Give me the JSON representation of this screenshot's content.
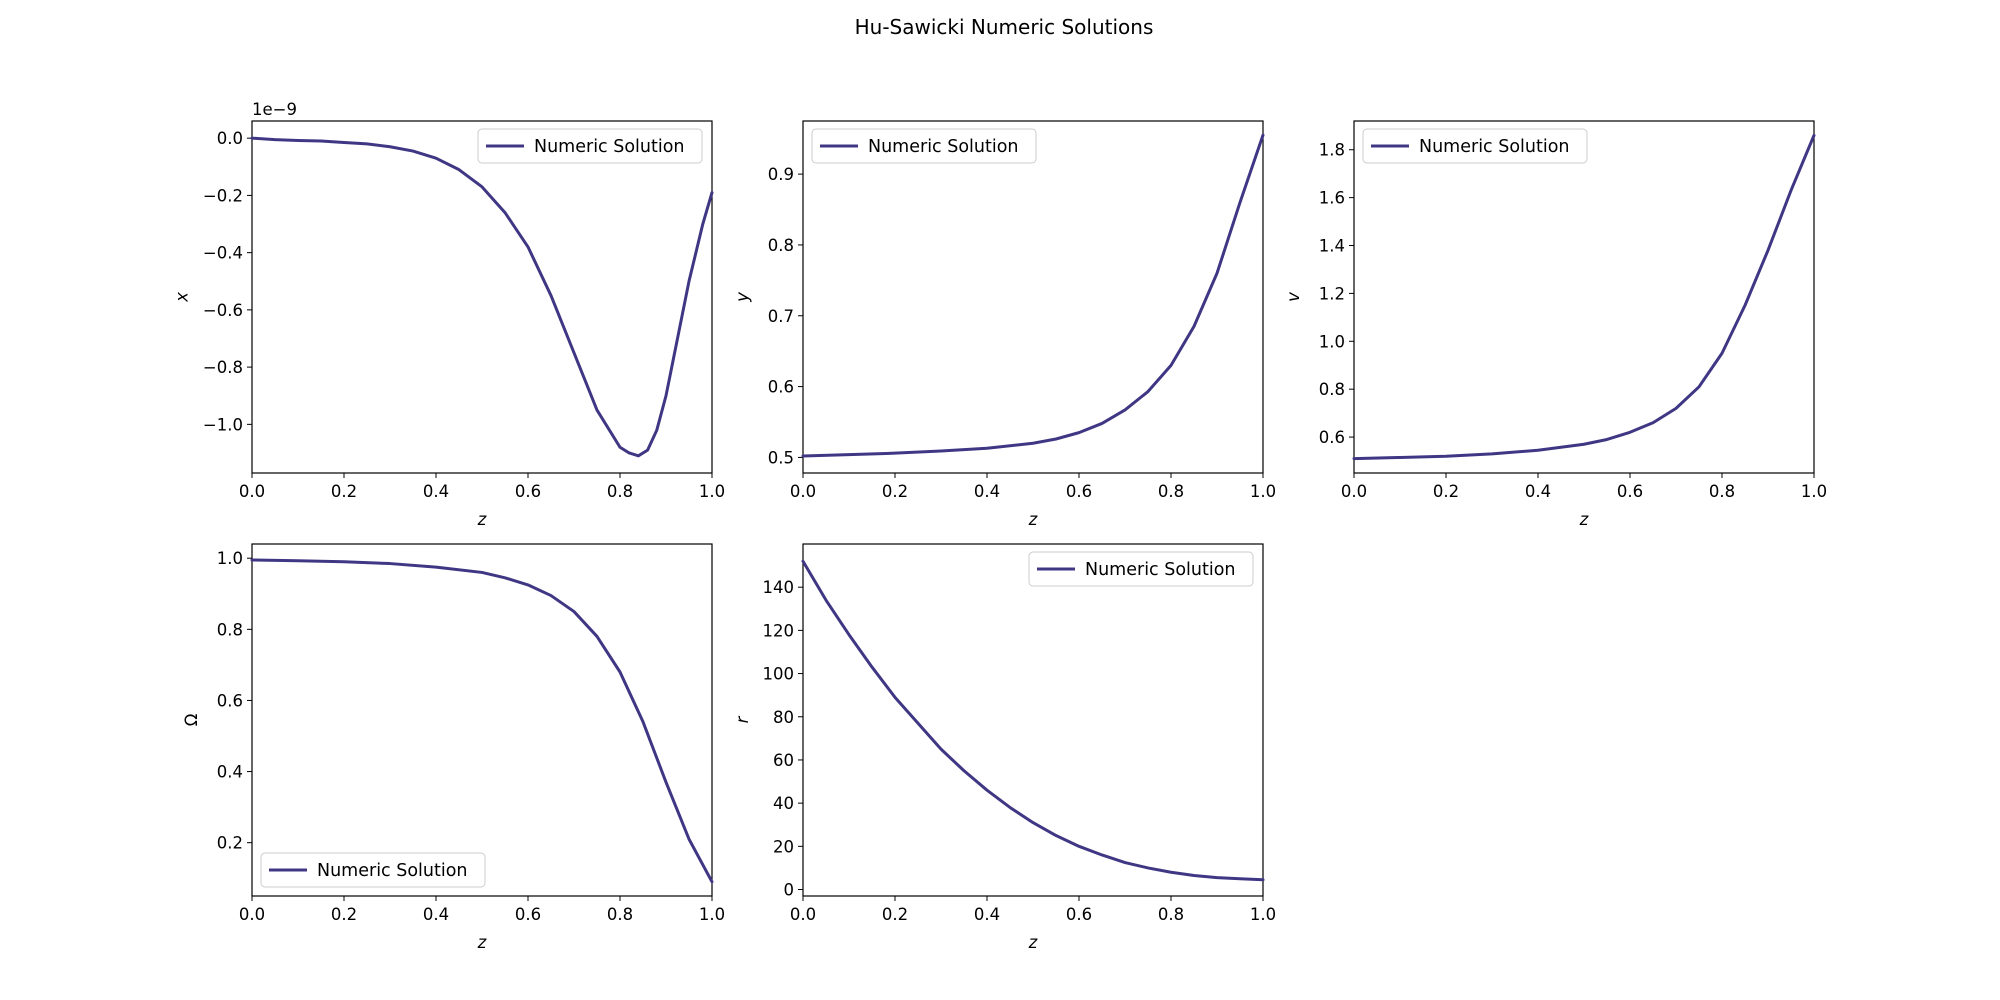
{
  "title": "Hu-Sawicki Numeric Solutions",
  "line_color": "#3f3784",
  "chart_data": [
    {
      "type": "line",
      "xlabel": "z",
      "ylabel": "x",
      "offset_text": "1e−9",
      "xlim": [
        0.0,
        1.0
      ],
      "ylim": [
        -1.17,
        0.06
      ],
      "xticks": [
        0.0,
        0.2,
        0.4,
        0.6,
        0.8,
        1.0
      ],
      "xtick_labels": [
        "0.0",
        "0.2",
        "0.4",
        "0.6",
        "0.8",
        "1.0"
      ],
      "yticks": [
        0.0,
        -0.2,
        -0.4,
        -0.6,
        -0.8,
        -1.0
      ],
      "ytick_labels": [
        "0.0",
        "−0.2",
        "−0.4",
        "−0.6",
        "−0.8",
        "−1.0"
      ],
      "legend": "top-right",
      "grid": false,
      "series": [
        {
          "name": "Numeric Solution",
          "x": [
            0.0,
            0.05,
            0.1,
            0.15,
            0.2,
            0.25,
            0.3,
            0.35,
            0.4,
            0.45,
            0.5,
            0.55,
            0.6,
            0.65,
            0.7,
            0.75,
            0.8,
            0.82,
            0.84,
            0.86,
            0.88,
            0.9,
            0.92,
            0.95,
            0.98,
            1.0
          ],
          "y": [
            0.0,
            -0.005,
            -0.008,
            -0.01,
            -0.015,
            -0.02,
            -0.03,
            -0.045,
            -0.07,
            -0.11,
            -0.17,
            -0.26,
            -0.38,
            -0.55,
            -0.75,
            -0.95,
            -1.08,
            -1.1,
            -1.11,
            -1.09,
            -1.02,
            -0.9,
            -0.74,
            -0.5,
            -0.3,
            -0.19
          ]
        }
      ]
    },
    {
      "type": "line",
      "xlabel": "z",
      "ylabel": "y",
      "xlim": [
        0.0,
        1.0
      ],
      "ylim": [
        0.478,
        0.975
      ],
      "xticks": [
        0.0,
        0.2,
        0.4,
        0.6,
        0.8,
        1.0
      ],
      "xtick_labels": [
        "0.0",
        "0.2",
        "0.4",
        "0.6",
        "0.8",
        "1.0"
      ],
      "yticks": [
        0.5,
        0.6,
        0.7,
        0.8,
        0.9
      ],
      "ytick_labels": [
        "0.5",
        "0.6",
        "0.7",
        "0.8",
        "0.9"
      ],
      "legend": "top-left",
      "grid": false,
      "series": [
        {
          "name": "Numeric Solution",
          "x": [
            0.0,
            0.1,
            0.2,
            0.3,
            0.4,
            0.5,
            0.55,
            0.6,
            0.65,
            0.7,
            0.75,
            0.8,
            0.85,
            0.9,
            0.95,
            1.0
          ],
          "y": [
            0.502,
            0.504,
            0.506,
            0.509,
            0.513,
            0.52,
            0.526,
            0.535,
            0.548,
            0.567,
            0.593,
            0.63,
            0.685,
            0.76,
            0.86,
            0.955
          ]
        }
      ]
    },
    {
      "type": "line",
      "xlabel": "z",
      "ylabel": "v",
      "xlim": [
        0.0,
        1.0
      ],
      "ylim": [
        0.45,
        1.92
      ],
      "xticks": [
        0.0,
        0.2,
        0.4,
        0.6,
        0.8,
        1.0
      ],
      "xtick_labels": [
        "0.0",
        "0.2",
        "0.4",
        "0.6",
        "0.8",
        "1.0"
      ],
      "yticks": [
        0.6,
        0.8,
        1.0,
        1.2,
        1.4,
        1.6,
        1.8
      ],
      "ytick_labels": [
        "0.6",
        "0.8",
        "1.0",
        "1.2",
        "1.4",
        "1.6",
        "1.8"
      ],
      "legend": "top-left",
      "grid": false,
      "series": [
        {
          "name": "Numeric Solution",
          "x": [
            0.0,
            0.1,
            0.2,
            0.3,
            0.4,
            0.5,
            0.55,
            0.6,
            0.65,
            0.7,
            0.75,
            0.8,
            0.85,
            0.9,
            0.95,
            1.0
          ],
          "y": [
            0.51,
            0.515,
            0.52,
            0.53,
            0.545,
            0.57,
            0.59,
            0.62,
            0.66,
            0.72,
            0.81,
            0.95,
            1.15,
            1.38,
            1.63,
            1.86
          ]
        }
      ]
    },
    {
      "type": "line",
      "xlabel": "z",
      "ylabel": "Ω",
      "ylabel_upright": true,
      "xlim": [
        0.0,
        1.0
      ],
      "ylim": [
        0.05,
        1.04
      ],
      "xticks": [
        0.0,
        0.2,
        0.4,
        0.6,
        0.8,
        1.0
      ],
      "xtick_labels": [
        "0.0",
        "0.2",
        "0.4",
        "0.6",
        "0.8",
        "1.0"
      ],
      "yticks": [
        0.2,
        0.4,
        0.6,
        0.8,
        1.0
      ],
      "ytick_labels": [
        "0.2",
        "0.4",
        "0.6",
        "0.8",
        "1.0"
      ],
      "legend": "bottom-left",
      "grid": false,
      "series": [
        {
          "name": "Numeric Solution",
          "x": [
            0.0,
            0.1,
            0.2,
            0.3,
            0.4,
            0.5,
            0.55,
            0.6,
            0.65,
            0.7,
            0.75,
            0.8,
            0.85,
            0.9,
            0.95,
            1.0
          ],
          "y": [
            0.995,
            0.993,
            0.99,
            0.985,
            0.975,
            0.96,
            0.945,
            0.925,
            0.895,
            0.85,
            0.78,
            0.68,
            0.54,
            0.37,
            0.21,
            0.09
          ]
        }
      ]
    },
    {
      "type": "line",
      "xlabel": "z",
      "ylabel": "r",
      "xlim": [
        0.0,
        1.0
      ],
      "ylim": [
        -3.0,
        160.0
      ],
      "xticks": [
        0.0,
        0.2,
        0.4,
        0.6,
        0.8,
        1.0
      ],
      "xtick_labels": [
        "0.0",
        "0.2",
        "0.4",
        "0.6",
        "0.8",
        "1.0"
      ],
      "yticks": [
        0,
        20,
        40,
        60,
        80,
        100,
        120,
        140
      ],
      "ytick_labels": [
        "0",
        "20",
        "40",
        "60",
        "80",
        "100",
        "120",
        "140"
      ],
      "legend": "top-right",
      "grid": false,
      "series": [
        {
          "name": "Numeric Solution",
          "x": [
            0.0,
            0.05,
            0.1,
            0.15,
            0.2,
            0.25,
            0.3,
            0.35,
            0.4,
            0.45,
            0.5,
            0.55,
            0.6,
            0.65,
            0.7,
            0.75,
            0.8,
            0.85,
            0.9,
            0.95,
            1.0
          ],
          "y": [
            152,
            134,
            118,
            103,
            89,
            77,
            65,
            55,
            46,
            38,
            31,
            25,
            20,
            16,
            12.5,
            10,
            8,
            6.5,
            5.5,
            5,
            4.5
          ]
        }
      ]
    }
  ]
}
